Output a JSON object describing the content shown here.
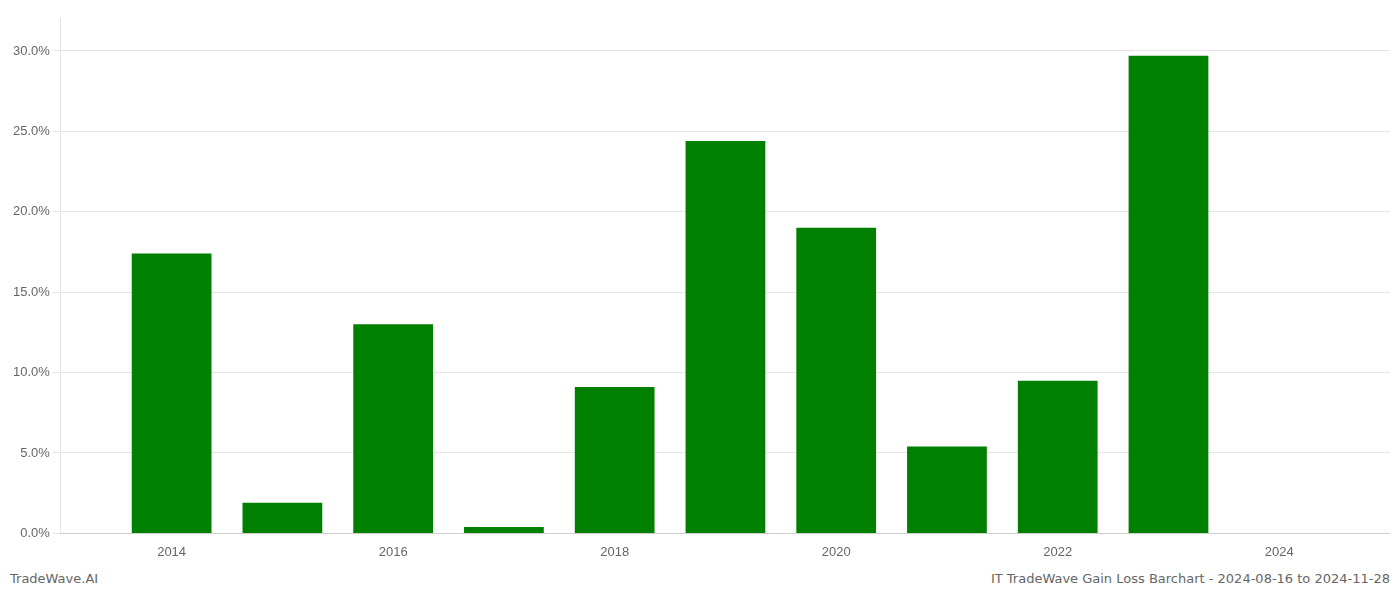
{
  "chart_data": {
    "type": "bar",
    "x": [
      2014,
      2015,
      2016,
      2017,
      2018,
      2019,
      2020,
      2021,
      2022,
      2023
    ],
    "values": [
      0.174,
      0.019,
      0.13,
      0.004,
      0.091,
      0.244,
      0.19,
      0.054,
      0.095,
      0.297
    ],
    "color": "#008000",
    "xlim": [
      2013.0,
      2025.0
    ],
    "xticks": [
      2014,
      2016,
      2018,
      2020,
      2022,
      2024
    ],
    "ylim": [
      0.0,
      0.32
    ],
    "yticks": [
      {
        "value": 0.0,
        "label": "0.0%"
      },
      {
        "value": 0.05,
        "label": "5.0%"
      },
      {
        "value": 0.1,
        "label": "10.0%"
      },
      {
        "value": 0.15,
        "label": "15.0%"
      },
      {
        "value": 0.2,
        "label": "20.0%"
      },
      {
        "value": 0.25,
        "label": "25.0%"
      },
      {
        "value": 0.3,
        "label": "30.0%"
      }
    ],
    "grid": "y",
    "annotations": [
      "TradeWave.AI",
      "IT TradeWave Gain Loss Barchart - 2024-08-16 to 2024-11-28"
    ]
  }
}
